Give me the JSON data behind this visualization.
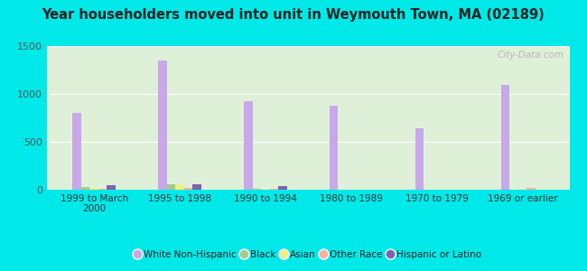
{
  "title": "Year householders moved into unit in Weymouth Town, MA (02189)",
  "categories": [
    "1999 to March\n2000",
    "1995 to 1998",
    "1990 to 1994",
    "1980 to 1989",
    "1970 to 1979",
    "1969 or earlier"
  ],
  "series": {
    "White Non-Hispanic": [
      800,
      1350,
      920,
      880,
      640,
      1090
    ],
    "Black": [
      30,
      60,
      8,
      4,
      4,
      4
    ],
    "Asian": [
      15,
      55,
      4,
      4,
      4,
      4
    ],
    "Other Race": [
      10,
      15,
      8,
      4,
      4,
      18
    ],
    "Hispanic or Latino": [
      50,
      60,
      35,
      4,
      4,
      4
    ]
  },
  "colors": {
    "White Non-Hispanic": "#c8a8e8",
    "Black": "#a8c890",
    "Asian": "#f0f080",
    "Other Race": "#ffb0a0",
    "Hispanic or Latino": "#8060b0"
  },
  "ylim": [
    0,
    1500
  ],
  "yticks": [
    0,
    500,
    1000,
    1500
  ],
  "background_color": "#00e8e8",
  "plot_bg": "#dff0d8",
  "watermark": "City-Data.com",
  "bar_width": 0.1
}
